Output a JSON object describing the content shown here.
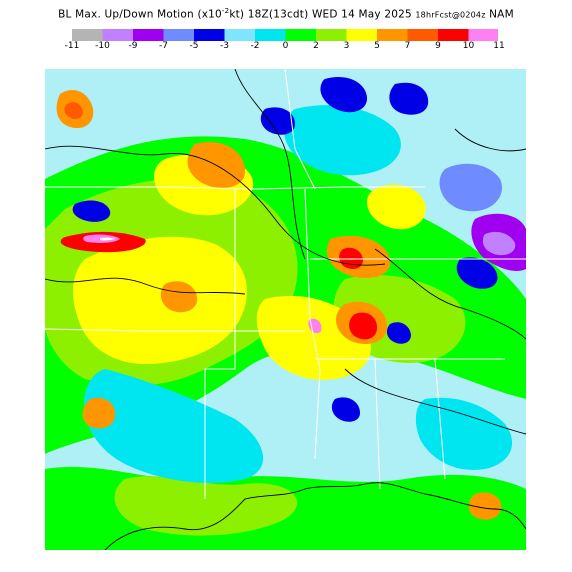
{
  "header": {
    "title_main": "BL Max. Up/Down Motion (x10",
    "title_exp": "-2",
    "title_rest": "kt)  18Z(13cdt) WED 14 May 2025 ",
    "title_small": "18hrFcst@0204z",
    "title_model": " NAM"
  },
  "legend": {
    "colors": [
      "#b4b4b4",
      "#c080ff",
      "#a000f0",
      "#6e8cff",
      "#0000e6",
      "#7fe5ff",
      "#00e6f0",
      "#00ff00",
      "#8cf000",
      "#ffff00",
      "#ff9600",
      "#ff5a00",
      "#ff0000",
      "#ff80f0"
    ],
    "ticks": [
      "-11",
      "-10",
      "-9",
      "-7",
      "-5",
      "-3",
      "-2",
      "0",
      "2",
      "3",
      "5",
      "7",
      "9",
      "10",
      "11"
    ]
  },
  "palette": {
    "light_cyan": "#aef0f5",
    "cyan": "#00e6f0",
    "green": "#00ff00",
    "lime": "#8cf000",
    "yellow": "#ffff00",
    "orange": "#ff9600",
    "red_orange": "#ff5a00",
    "red": "#ff0000",
    "pink": "#ff80f0",
    "blue": "#0000e6",
    "light_blue": "#6e8cff",
    "violet": "#a000f0",
    "lavender": "#c080ff",
    "white": "#ffffff",
    "border_line": "#000000",
    "state_line": "#ffffff"
  }
}
